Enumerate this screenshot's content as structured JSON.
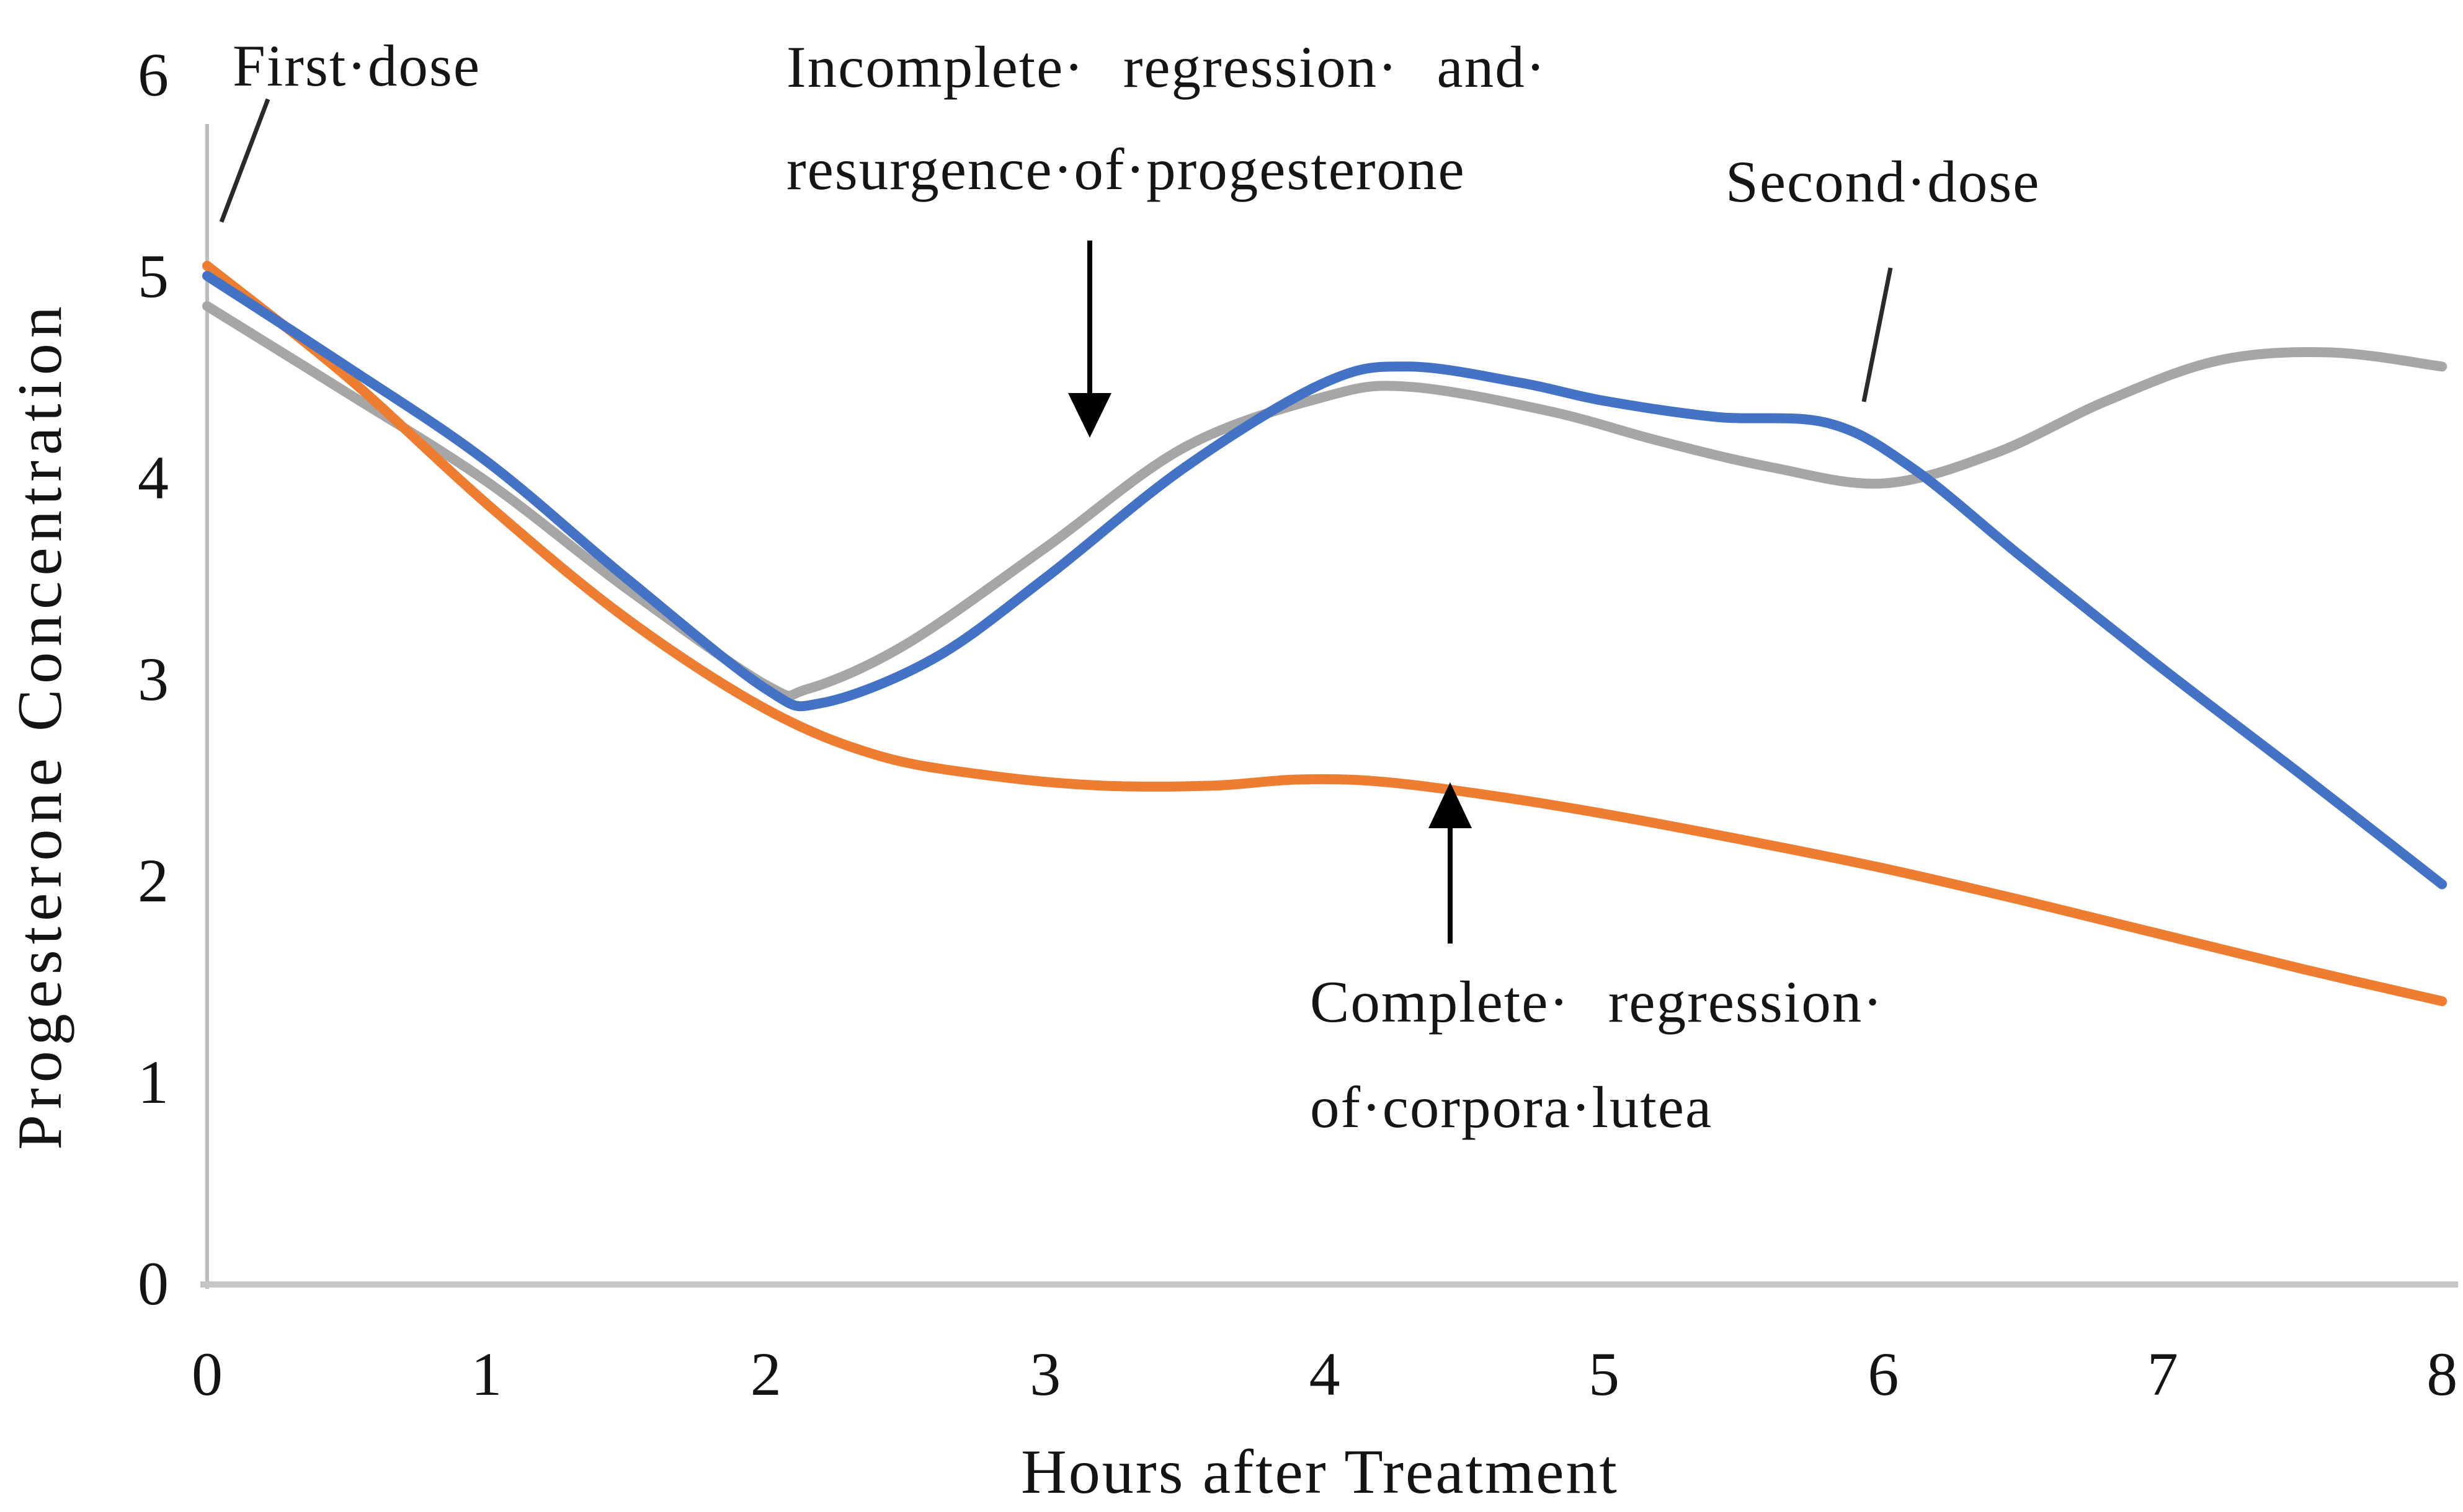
{
  "annotations": {
    "first_dose": "First·dose",
    "incomplete_line1": "Incomplete· regression· and·",
    "incomplete_line2": "resurgence·of·progesterone",
    "second_dose": "Second·dose",
    "complete_line1": "Complete· regression·",
    "complete_line2": "of·corpora·lutea"
  },
  "chart_data": {
    "type": "line",
    "title": "",
    "xlabel": "Hours after Treatment",
    "ylabel": "Progesterone Concentration",
    "xlim": [
      0,
      8
    ],
    "ylim": [
      0,
      6
    ],
    "xticks": [
      0,
      1,
      2,
      3,
      4,
      5,
      6,
      7,
      8
    ],
    "yticks": [
      0,
      1,
      2,
      3,
      4,
      5,
      6
    ],
    "grid": false,
    "legend_position": "none",
    "axis_color": "#c6c6c6",
    "series": [
      {
        "name": "gray",
        "color": "#a6a6a6",
        "points": [
          [
            0,
            4.85
          ],
          [
            0.5,
            4.42
          ],
          [
            1,
            3.98
          ],
          [
            1.5,
            3.45
          ],
          [
            2,
            2.97
          ],
          [
            2.15,
            2.95
          ],
          [
            2.5,
            3.17
          ],
          [
            3,
            3.65
          ],
          [
            3.5,
            4.15
          ],
          [
            4,
            4.4
          ],
          [
            4.3,
            4.45
          ],
          [
            4.8,
            4.33
          ],
          [
            5.2,
            4.18
          ],
          [
            5.6,
            4.05
          ],
          [
            6,
            3.97
          ],
          [
            6.4,
            4.12
          ],
          [
            6.8,
            4.38
          ],
          [
            7.2,
            4.58
          ],
          [
            7.6,
            4.62
          ],
          [
            8,
            4.55
          ]
        ]
      },
      {
        "name": "orange",
        "color": "#ed7d31",
        "points": [
          [
            0,
            5.05
          ],
          [
            0.5,
            4.5
          ],
          [
            1,
            3.87
          ],
          [
            1.5,
            3.3
          ],
          [
            2,
            2.85
          ],
          [
            2.4,
            2.62
          ],
          [
            2.8,
            2.52
          ],
          [
            3.2,
            2.47
          ],
          [
            3.6,
            2.47
          ],
          [
            3.9,
            2.5
          ],
          [
            4.2,
            2.49
          ],
          [
            4.6,
            2.42
          ],
          [
            5,
            2.33
          ],
          [
            5.5,
            2.2
          ],
          [
            6,
            2.06
          ],
          [
            6.5,
            1.9
          ],
          [
            7,
            1.73
          ],
          [
            7.5,
            1.56
          ],
          [
            8,
            1.4
          ]
        ]
      },
      {
        "name": "blue",
        "color": "#4472c4",
        "points": [
          [
            0,
            5.0
          ],
          [
            0.5,
            4.55
          ],
          [
            1,
            4.08
          ],
          [
            1.5,
            3.5
          ],
          [
            2,
            2.95
          ],
          [
            2.2,
            2.88
          ],
          [
            2.6,
            3.1
          ],
          [
            3,
            3.5
          ],
          [
            3.5,
            4.05
          ],
          [
            4,
            4.47
          ],
          [
            4.3,
            4.55
          ],
          [
            4.7,
            4.47
          ],
          [
            5,
            4.38
          ],
          [
            5.4,
            4.3
          ],
          [
            5.8,
            4.27
          ],
          [
            6.1,
            4.05
          ],
          [
            6.5,
            3.6
          ],
          [
            7,
            3.05
          ],
          [
            7.5,
            2.52
          ],
          [
            8,
            1.98
          ]
        ]
      }
    ]
  }
}
